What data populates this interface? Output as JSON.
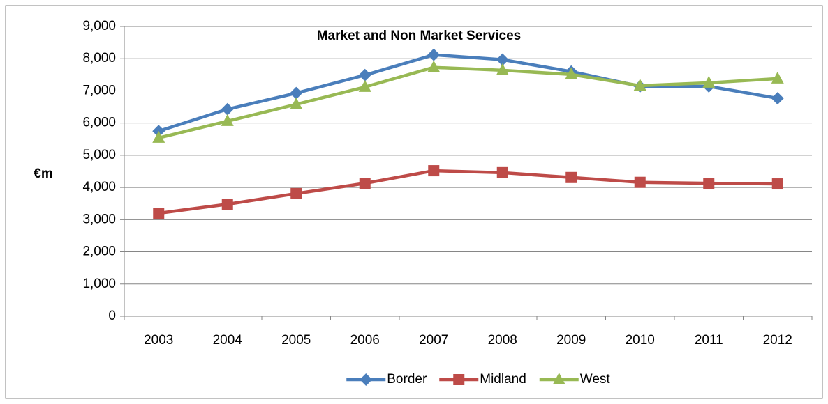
{
  "chart_data": {
    "type": "line",
    "title": "Market and Non Market Services",
    "y_label": "€m",
    "categories": [
      "2003",
      "2004",
      "2005",
      "2006",
      "2007",
      "2008",
      "2009",
      "2010",
      "2011",
      "2012"
    ],
    "series": [
      {
        "name": "Border",
        "color": "#4a7ebb",
        "marker": "diamond",
        "values": [
          5750,
          6430,
          6930,
          7490,
          8120,
          7970,
          7600,
          7140,
          7140,
          6770
        ]
      },
      {
        "name": "Midland",
        "color": "#be4b48",
        "marker": "square",
        "values": [
          3200,
          3480,
          3810,
          4130,
          4520,
          4460,
          4310,
          4160,
          4130,
          4110
        ]
      },
      {
        "name": "West",
        "color": "#98b954",
        "marker": "triangle",
        "values": [
          5540,
          6060,
          6580,
          7120,
          7730,
          7640,
          7510,
          7160,
          7250,
          7380
        ]
      }
    ],
    "ylim": [
      0,
      9000
    ],
    "yticks": [
      0,
      {
        "value": 1000,
        "label": "1,000"
      },
      {
        "value": 2000,
        "label": "2,000"
      },
      {
        "value": 3000,
        "label": "3,000"
      },
      {
        "value": 4000,
        "label": "4,000"
      },
      {
        "value": 5000,
        "label": "5,000"
      },
      {
        "value": 6000,
        "label": "6,000"
      },
      {
        "value": 7000,
        "label": "7,000"
      },
      {
        "value": 8000,
        "label": "8,000"
      },
      {
        "value": 9000,
        "label": "9,000"
      }
    ],
    "grid": true,
    "legend": "bottom"
  }
}
